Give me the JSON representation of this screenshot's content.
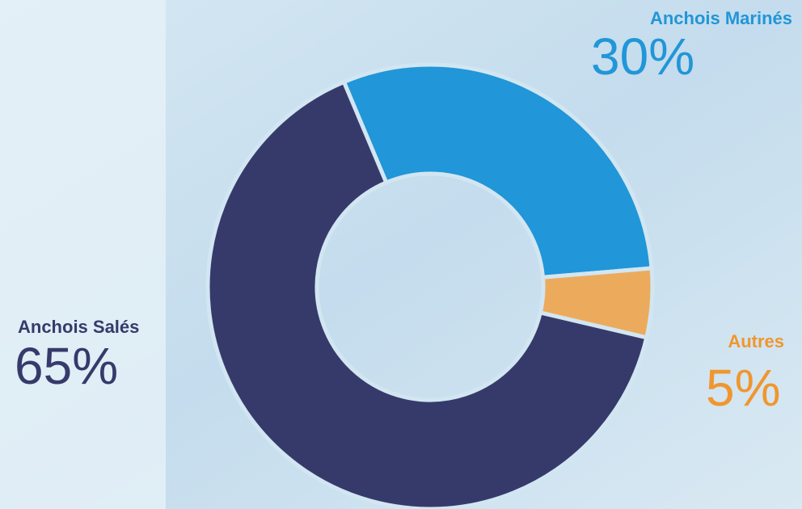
{
  "chart_data": {
    "type": "donut",
    "categories": [
      "Anchois Marinés",
      "Autres",
      "Anchois Salés"
    ],
    "values": [
      30,
      5,
      65
    ],
    "value_labels": [
      "30%",
      "5%",
      "65%"
    ],
    "colors": [
      "#2196d8",
      "#ecab5c",
      "#363a6b"
    ],
    "label_colors": [
      "#2196d8",
      "#f0962e",
      "#363a6b"
    ]
  }
}
